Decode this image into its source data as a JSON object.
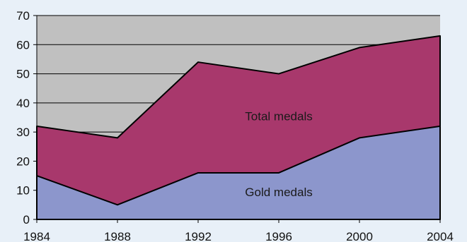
{
  "chart_data": {
    "type": "area",
    "x": [
      1984,
      1988,
      1992,
      1996,
      2000,
      2004
    ],
    "series": [
      {
        "name": "Gold medals",
        "values": [
          15,
          5,
          16,
          16,
          28,
          32
        ]
      },
      {
        "name": "Total medals",
        "values": [
          32,
          28,
          54,
          50,
          59,
          63
        ]
      }
    ],
    "x_tick_labels": [
      "1984",
      "1988",
      "1992",
      "1996",
      "2000",
      "2004"
    ],
    "y_ticks": [
      0,
      10,
      20,
      30,
      40,
      50,
      60,
      70
    ],
    "y_tick_labels": [
      "0",
      "10",
      "20",
      "30",
      "40",
      "50",
      "60",
      "70"
    ],
    "ylim": [
      0,
      70
    ],
    "xlim": [
      1984,
      2004
    ],
    "grid": true,
    "legend": "none",
    "annotations": [
      {
        "text": "Total medals",
        "x": 1996,
        "y": 34
      },
      {
        "text": "Gold medals",
        "x": 1996,
        "y": 8
      }
    ],
    "colors": {
      "background": "#e8f0f8",
      "plot_area": "#c0c0c0",
      "total_fill": "#a8386c",
      "gold_fill": "#8c96cc",
      "lines": "#000000"
    }
  }
}
